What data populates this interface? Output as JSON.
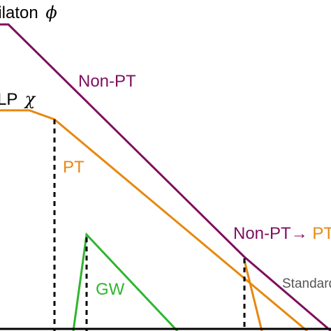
{
  "colors": {
    "dilaton": "#7d0f5e",
    "pt": "#e8870e",
    "gw": "#2fb52f",
    "standard": "#555555",
    "dashed": "#000000",
    "axis": "#000000"
  },
  "labels": {
    "dilaton_text": "Dilaton",
    "dilaton_symbol": "ϕ",
    "wimp_text": "FIMP/WIMP/LP",
    "wimp_symbol": "χ",
    "non_pt": "Non-PT",
    "pt": "PT",
    "gw": "GW",
    "non_pt_to_pt": "Non-PT→PT",
    "standard": "Standard"
  }
}
